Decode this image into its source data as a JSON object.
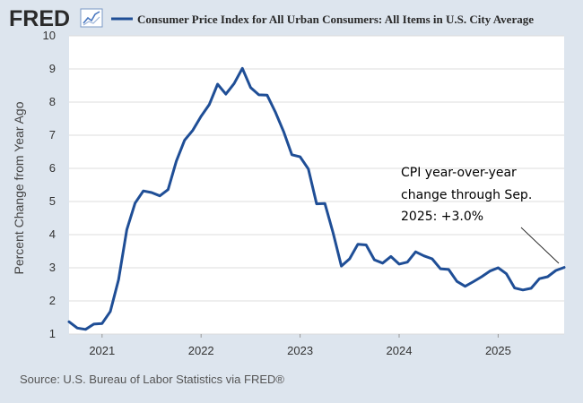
{
  "header": {
    "logo_text": "FRED",
    "legend_label": "Consumer Price Index for All Urban Consumers: All Items in U.S. City Average"
  },
  "footer": {
    "source": "Source: U.S. Bureau of Labor Statistics via FRED®"
  },
  "colors": {
    "series": "#1f4e96",
    "background": "#dde5ee",
    "plot_bg": "#ffffff",
    "grid": "#dcdcdc"
  },
  "chart_data": {
    "type": "line",
    "title": "Consumer Price Index for All Urban Consumers: All Items in U.S. City Average",
    "ylabel": "Percent Change from Year Ago",
    "xlabel": "",
    "ylim": [
      1,
      10
    ],
    "yticks": [
      1,
      2,
      3,
      4,
      5,
      6,
      7,
      8,
      9,
      10
    ],
    "xlim": [
      "2020-09",
      "2025-09"
    ],
    "xticks": [
      "2021",
      "2022",
      "2023",
      "2024",
      "2025"
    ],
    "grid": true,
    "annotation": {
      "lines": [
        "CPI year-over-year",
        "change through Sep.",
        "2025: +3.0%"
      ]
    },
    "series": [
      {
        "name": "Consumer Price Index for All Urban Consumers: All Items in U.S. City Average",
        "x": [
          "2020-09",
          "2020-10",
          "2020-11",
          "2020-12",
          "2021-01",
          "2021-02",
          "2021-03",
          "2021-04",
          "2021-05",
          "2021-06",
          "2021-07",
          "2021-08",
          "2021-09",
          "2021-10",
          "2021-11",
          "2021-12",
          "2022-01",
          "2022-02",
          "2022-03",
          "2022-04",
          "2022-05",
          "2022-06",
          "2022-07",
          "2022-08",
          "2022-09",
          "2022-10",
          "2022-11",
          "2022-12",
          "2023-01",
          "2023-02",
          "2023-03",
          "2023-04",
          "2023-05",
          "2023-06",
          "2023-07",
          "2023-08",
          "2023-09",
          "2023-10",
          "2023-11",
          "2023-12",
          "2024-01",
          "2024-02",
          "2024-03",
          "2024-04",
          "2024-05",
          "2024-06",
          "2024-07",
          "2024-08",
          "2024-09",
          "2024-10",
          "2024-11",
          "2024-12",
          "2025-01",
          "2025-02",
          "2025-03",
          "2025-04",
          "2025-05",
          "2025-06",
          "2025-07",
          "2025-08",
          "2025-09"
        ],
        "values": [
          1.37,
          1.18,
          1.14,
          1.3,
          1.32,
          1.68,
          2.64,
          4.15,
          4.95,
          5.32,
          5.27,
          5.17,
          5.36,
          6.22,
          6.85,
          7.15,
          7.57,
          7.93,
          8.54,
          8.24,
          8.56,
          9.02,
          8.44,
          8.22,
          8.21,
          7.7,
          7.11,
          6.41,
          6.35,
          5.98,
          4.93,
          4.94,
          4.05,
          3.05,
          3.27,
          3.71,
          3.69,
          3.24,
          3.14,
          3.34,
          3.11,
          3.17,
          3.48,
          3.36,
          3.27,
          2.97,
          2.95,
          2.59,
          2.44,
          2.58,
          2.73,
          2.9,
          3.0,
          2.82,
          2.39,
          2.33,
          2.38,
          2.67,
          2.73,
          2.92,
          3.01
        ]
      }
    ]
  }
}
